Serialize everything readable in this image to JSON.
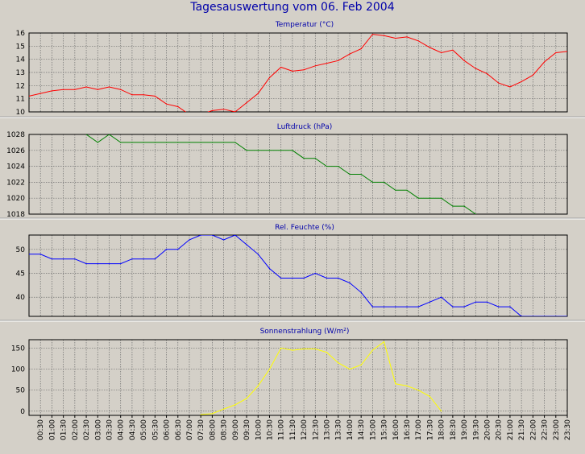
{
  "page_title": "Tagesauswertung vom 06. Feb 2004",
  "colors": {
    "background": "#d4d0c8",
    "panel_title": "#0000aa",
    "grid": "#6c6c6c",
    "separator": "#ffffff"
  },
  "x_ticks": [
    "00:30",
    "01:00",
    "01:30",
    "02:00",
    "02:30",
    "03:00",
    "03:30",
    "04:00",
    "04:30",
    "05:00",
    "05:30",
    "06:00",
    "06:30",
    "07:00",
    "07:30",
    "08:00",
    "08:30",
    "09:00",
    "09:30",
    "10:00",
    "10:30",
    "11:00",
    "11:30",
    "12:00",
    "12:30",
    "13:00",
    "13:30",
    "14:00",
    "14:30",
    "15:00",
    "15:30",
    "16:00",
    "16:30",
    "17:00",
    "17:30",
    "18:00",
    "18:30",
    "19:00",
    "19:30",
    "20:00",
    "20:30",
    "21:00",
    "21:30",
    "22:00",
    "22:30",
    "23:00",
    "23:30"
  ],
  "chart_data": [
    {
      "type": "line",
      "title": "Temperatur (°C)",
      "color": "#ff0000",
      "ylim": [
        10,
        16
      ],
      "yticks": [
        10,
        11,
        12,
        13,
        14,
        15,
        16
      ],
      "ytick_labels": [
        "10",
        "11",
        "12",
        "13",
        "14",
        "15",
        "16"
      ],
      "grid": true,
      "x": [
        "00:00",
        "00:30",
        "01:00",
        "01:30",
        "02:00",
        "02:30",
        "03:00",
        "03:30",
        "04:00",
        "04:30",
        "05:00",
        "05:30",
        "06:00",
        "06:30",
        "07:00",
        "07:30",
        "08:00",
        "08:30",
        "09:00",
        "09:30",
        "10:00",
        "10:30",
        "11:00",
        "11:30",
        "12:00",
        "12:30",
        "13:00",
        "13:30",
        "14:00",
        "14:30",
        "15:00",
        "15:30",
        "16:00",
        "16:30",
        "17:00",
        "17:30",
        "18:00",
        "18:30",
        "19:00",
        "19:30",
        "20:00",
        "20:30",
        "21:00",
        "21:30",
        "22:00",
        "22:30",
        "23:00",
        "23:30"
      ],
      "values": [
        11.2,
        11.4,
        11.6,
        11.7,
        11.7,
        11.9,
        11.7,
        11.9,
        11.7,
        11.3,
        11.3,
        11.2,
        10.6,
        10.4,
        9.8,
        9.8,
        10.1,
        10.2,
        10.0,
        10.7,
        11.4,
        12.6,
        13.4,
        13.1,
        13.2,
        13.5,
        13.7,
        13.9,
        14.4,
        14.8,
        15.9,
        15.8,
        15.6,
        15.7,
        15.4,
        14.9,
        14.5,
        14.7,
        13.9,
        13.3,
        12.9,
        12.2,
        11.9,
        12.3,
        12.8,
        13.8,
        14.5,
        14.6
      ]
    },
    {
      "type": "line",
      "title": "Luftdruck (hPa)",
      "color": "#008000",
      "ylim": [
        1018,
        1028
      ],
      "yticks": [
        1018,
        1020,
        1022,
        1024,
        1026,
        1028
      ],
      "ytick_labels": [
        "1018",
        "1020",
        "1022",
        "1024",
        "1026",
        "1028"
      ],
      "grid": true,
      "x": [
        "02:30",
        "03:00",
        "03:30",
        "04:00",
        "04:30",
        "05:00",
        "05:30",
        "06:00",
        "06:30",
        "07:00",
        "07:30",
        "08:00",
        "08:30",
        "09:00",
        "09:30",
        "10:00",
        "10:30",
        "11:00",
        "11:30",
        "12:00",
        "12:30",
        "13:00",
        "13:30",
        "14:00",
        "14:30",
        "15:00",
        "15:30",
        "16:00",
        "16:30",
        "17:00",
        "17:30",
        "18:00",
        "18:30",
        "19:00",
        "19:30"
      ],
      "values": [
        1028,
        1027,
        1028,
        1027,
        1027,
        1027,
        1027,
        1027,
        1027,
        1027,
        1027,
        1027,
        1027,
        1027,
        1026,
        1026,
        1026,
        1026,
        1026,
        1025,
        1025,
        1024,
        1024,
        1023,
        1023,
        1022,
        1022,
        1021,
        1021,
        1020,
        1020,
        1020,
        1019,
        1019,
        1018
      ]
    },
    {
      "type": "line",
      "title": "Rel. Feuchte (%)",
      "color": "#0000ff",
      "ylim": [
        36,
        53
      ],
      "yticks": [
        40,
        45,
        50
      ],
      "ytick_labels": [
        "40",
        "45",
        "50"
      ],
      "grid": true,
      "x": [
        "00:00",
        "00:30",
        "01:00",
        "01:30",
        "02:00",
        "02:30",
        "03:00",
        "03:30",
        "04:00",
        "04:30",
        "05:00",
        "05:30",
        "06:00",
        "06:30",
        "07:00",
        "07:30",
        "08:00",
        "08:30",
        "09:00",
        "09:30",
        "10:00",
        "10:30",
        "11:00",
        "11:30",
        "12:00",
        "12:30",
        "13:00",
        "13:30",
        "14:00",
        "14:30",
        "15:00",
        "15:30",
        "16:00",
        "16:30",
        "17:00",
        "17:30",
        "18:00",
        "18:30",
        "19:00",
        "19:30",
        "20:00",
        "20:30",
        "21:00",
        "21:30",
        "22:00",
        "22:30",
        "23:00",
        "23:30"
      ],
      "values": [
        49,
        49,
        48,
        48,
        48,
        47,
        47,
        47,
        47,
        48,
        48,
        48,
        50,
        50,
        52,
        53,
        53,
        52,
        53,
        51,
        49,
        46,
        44,
        44,
        44,
        45,
        44,
        44,
        43,
        41,
        38,
        38,
        38,
        38,
        38,
        39,
        40,
        38,
        38,
        39,
        39,
        38,
        38,
        36,
        36,
        36,
        36,
        36
      ]
    },
    {
      "type": "line",
      "title": "Sonnenstrahlung (W/m²)",
      "color": "#ffff00",
      "ylim": [
        -10,
        170
      ],
      "yticks": [
        0,
        50,
        100,
        150
      ],
      "ytick_labels": [
        "0",
        "50",
        "100",
        "150"
      ],
      "grid": true,
      "x": [
        "07:30",
        "08:00",
        "08:30",
        "09:00",
        "09:30",
        "10:00",
        "10:30",
        "11:00",
        "11:30",
        "12:00",
        "12:30",
        "13:00",
        "13:30",
        "14:00",
        "14:30",
        "15:00",
        "15:30",
        "16:00",
        "16:30",
        "17:00",
        "17:30",
        "18:00"
      ],
      "values": [
        -8,
        -6,
        5,
        15,
        30,
        60,
        100,
        150,
        145,
        148,
        148,
        140,
        115,
        100,
        110,
        145,
        165,
        65,
        60,
        50,
        35,
        0
      ]
    }
  ]
}
